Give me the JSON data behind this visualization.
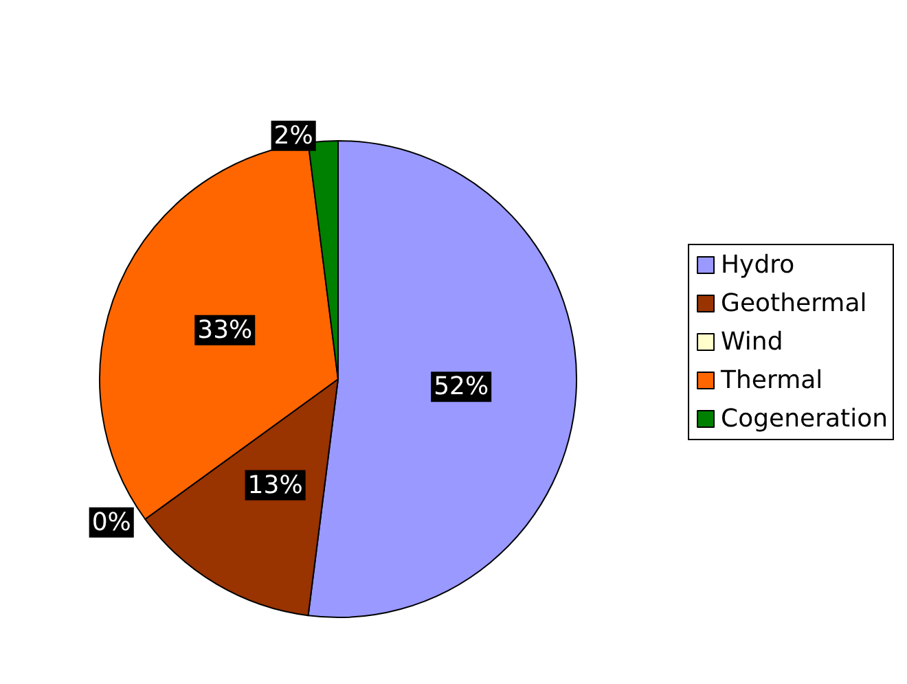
{
  "chart_data": {
    "type": "pie",
    "categories": [
      "Hydro",
      "Geothermal",
      "Wind",
      "Thermal",
      "Cogeneration"
    ],
    "values": [
      52,
      13,
      0,
      33,
      2
    ],
    "colors": [
      "#9999ff",
      "#993300",
      "#ffffcc",
      "#ff6600",
      "#008000"
    ],
    "value_labels": [
      "52%",
      "13%",
      "0%",
      "33%",
      "2%"
    ],
    "legend": "right"
  }
}
